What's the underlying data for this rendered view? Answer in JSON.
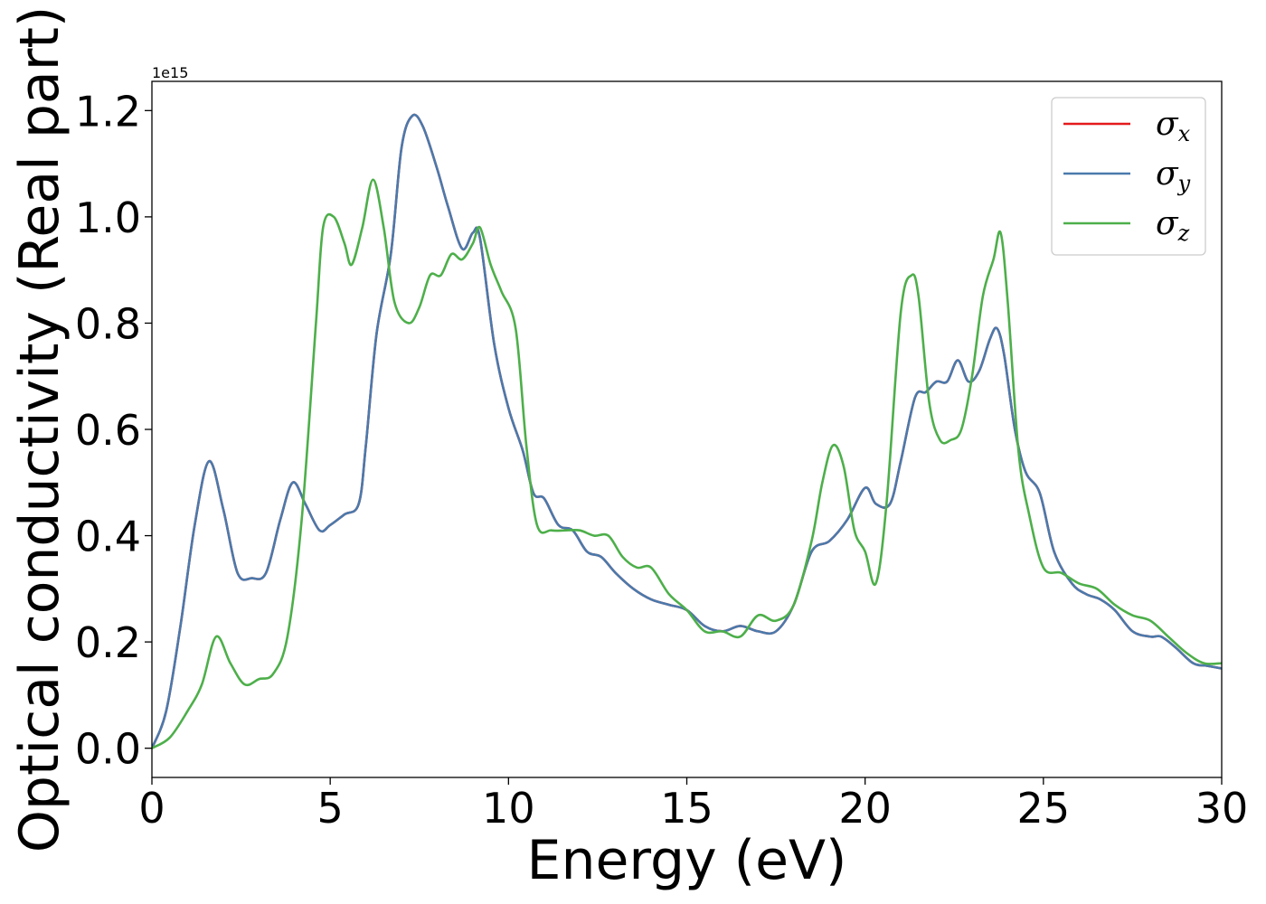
{
  "chart_data": {
    "type": "line",
    "title": "",
    "xlabel": "Energy (eV)",
    "ylabel": "Optical conductivity (Real part)",
    "y_offset_text": "1e15",
    "y_scale": 1000000000000000.0,
    "xlim": [
      0,
      30
    ],
    "ylim": [
      -0.055,
      1.255
    ],
    "x_ticks": [
      0,
      5,
      10,
      15,
      20,
      25,
      30
    ],
    "x_tick_labels": [
      "0",
      "5",
      "10",
      "15",
      "20",
      "25",
      "30"
    ],
    "y_ticks": [
      0.0,
      0.2,
      0.4,
      0.6,
      0.8,
      1.0,
      1.2
    ],
    "y_tick_labels": [
      "0.0",
      "0.2",
      "0.4",
      "0.6",
      "0.8",
      "1.0",
      "1.2"
    ],
    "grid": false,
    "legend_position": "top-right",
    "series": [
      {
        "name": "σx",
        "symbol": "σ",
        "subscript": "x",
        "color": "#e41a1c",
        "x": [
          0,
          0.4,
          0.8,
          1.2,
          1.6,
          2.0,
          2.4,
          2.8,
          3.2,
          3.6,
          3.95,
          4.3,
          4.7,
          5.0,
          5.4,
          5.8,
          6.0,
          6.3,
          6.7,
          7.0,
          7.3,
          7.6,
          8.0,
          8.3,
          8.7,
          9.0,
          9.2,
          9.6,
          10.0,
          10.4,
          10.7,
          11.0,
          11.4,
          11.8,
          12.2,
          12.6,
          13.0,
          13.5,
          14.0,
          14.5,
          15.0,
          15.5,
          16.0,
          16.5,
          17.0,
          17.5,
          18.0,
          18.5,
          19.0,
          19.5,
          20.0,
          20.3,
          20.7,
          21.0,
          21.4,
          21.7,
          22.0,
          22.3,
          22.6,
          22.9,
          23.2,
          23.5,
          23.7,
          23.9,
          24.2,
          24.5,
          24.9,
          25.3,
          25.8,
          26.2,
          26.6,
          27.0,
          27.5,
          28.0,
          28.3,
          28.7,
          29.2,
          29.6,
          30.0
        ],
        "values": [
          0.0,
          0.07,
          0.23,
          0.42,
          0.54,
          0.45,
          0.33,
          0.32,
          0.33,
          0.43,
          0.5,
          0.46,
          0.41,
          0.42,
          0.44,
          0.46,
          0.57,
          0.78,
          0.93,
          1.13,
          1.19,
          1.17,
          1.09,
          1.02,
          0.94,
          0.97,
          0.96,
          0.76,
          0.64,
          0.56,
          0.48,
          0.47,
          0.42,
          0.41,
          0.37,
          0.36,
          0.33,
          0.3,
          0.28,
          0.27,
          0.26,
          0.23,
          0.22,
          0.23,
          0.22,
          0.22,
          0.27,
          0.37,
          0.39,
          0.43,
          0.49,
          0.46,
          0.46,
          0.54,
          0.66,
          0.67,
          0.69,
          0.69,
          0.73,
          0.69,
          0.71,
          0.77,
          0.79,
          0.74,
          0.6,
          0.52,
          0.48,
          0.37,
          0.31,
          0.29,
          0.28,
          0.26,
          0.22,
          0.21,
          0.21,
          0.19,
          0.16,
          0.155,
          0.15
        ]
      },
      {
        "name": "σy",
        "symbol": "σ",
        "subscript": "y",
        "color": "#4a7aac",
        "x": [
          0,
          0.4,
          0.8,
          1.2,
          1.6,
          2.0,
          2.4,
          2.8,
          3.2,
          3.6,
          3.95,
          4.3,
          4.7,
          5.0,
          5.4,
          5.8,
          6.0,
          6.3,
          6.7,
          7.0,
          7.3,
          7.6,
          8.0,
          8.3,
          8.7,
          9.0,
          9.2,
          9.6,
          10.0,
          10.4,
          10.7,
          11.0,
          11.4,
          11.8,
          12.2,
          12.6,
          13.0,
          13.5,
          14.0,
          14.5,
          15.0,
          15.5,
          16.0,
          16.5,
          17.0,
          17.5,
          18.0,
          18.5,
          19.0,
          19.5,
          20.0,
          20.3,
          20.7,
          21.0,
          21.4,
          21.7,
          22.0,
          22.3,
          22.6,
          22.9,
          23.2,
          23.5,
          23.7,
          23.9,
          24.2,
          24.5,
          24.9,
          25.3,
          25.8,
          26.2,
          26.6,
          27.0,
          27.5,
          28.0,
          28.3,
          28.7,
          29.2,
          29.6,
          30.0
        ],
        "values": [
          0.0,
          0.07,
          0.23,
          0.42,
          0.54,
          0.45,
          0.33,
          0.32,
          0.33,
          0.43,
          0.5,
          0.46,
          0.41,
          0.42,
          0.44,
          0.46,
          0.57,
          0.78,
          0.93,
          1.13,
          1.19,
          1.17,
          1.09,
          1.02,
          0.94,
          0.97,
          0.96,
          0.76,
          0.64,
          0.56,
          0.48,
          0.47,
          0.42,
          0.41,
          0.37,
          0.36,
          0.33,
          0.3,
          0.28,
          0.27,
          0.26,
          0.23,
          0.22,
          0.23,
          0.22,
          0.22,
          0.27,
          0.37,
          0.39,
          0.43,
          0.49,
          0.46,
          0.46,
          0.54,
          0.66,
          0.67,
          0.69,
          0.69,
          0.73,
          0.69,
          0.71,
          0.77,
          0.79,
          0.74,
          0.6,
          0.52,
          0.48,
          0.37,
          0.31,
          0.29,
          0.28,
          0.26,
          0.22,
          0.21,
          0.21,
          0.19,
          0.16,
          0.155,
          0.15
        ]
      },
      {
        "name": "σz",
        "symbol": "σ",
        "subscript": "z",
        "color": "#4daf4a",
        "x": [
          0,
          0.5,
          1.0,
          1.4,
          1.8,
          2.2,
          2.6,
          3.0,
          3.4,
          3.8,
          4.2,
          4.6,
          4.8,
          5.1,
          5.4,
          5.6,
          5.9,
          6.2,
          6.5,
          6.8,
          7.2,
          7.5,
          7.8,
          8.1,
          8.4,
          8.7,
          9.0,
          9.2,
          9.5,
          9.8,
          10.2,
          10.5,
          10.8,
          11.2,
          11.6,
          12.0,
          12.4,
          12.8,
          13.2,
          13.6,
          14.0,
          14.5,
          15.0,
          15.5,
          16.0,
          16.5,
          17.0,
          17.5,
          18.0,
          18.5,
          18.8,
          19.1,
          19.4,
          19.7,
          20.0,
          20.3,
          20.6,
          21.0,
          21.3,
          21.5,
          21.8,
          22.1,
          22.4,
          22.7,
          23.0,
          23.3,
          23.6,
          23.8,
          24.0,
          24.3,
          24.6,
          25.0,
          25.5,
          26.0,
          26.5,
          27.0,
          27.5,
          28.0,
          28.5,
          29.0,
          29.5,
          30.0
        ],
        "values": [
          0.0,
          0.02,
          0.07,
          0.12,
          0.21,
          0.16,
          0.12,
          0.13,
          0.14,
          0.21,
          0.43,
          0.8,
          0.98,
          1.0,
          0.95,
          0.91,
          0.98,
          1.07,
          0.98,
          0.84,
          0.8,
          0.83,
          0.89,
          0.89,
          0.93,
          0.92,
          0.95,
          0.98,
          0.91,
          0.86,
          0.79,
          0.57,
          0.42,
          0.41,
          0.41,
          0.41,
          0.4,
          0.4,
          0.36,
          0.34,
          0.34,
          0.29,
          0.26,
          0.22,
          0.22,
          0.21,
          0.25,
          0.24,
          0.27,
          0.39,
          0.5,
          0.57,
          0.53,
          0.41,
          0.37,
          0.31,
          0.46,
          0.82,
          0.89,
          0.85,
          0.65,
          0.58,
          0.58,
          0.6,
          0.7,
          0.85,
          0.92,
          0.97,
          0.84,
          0.56,
          0.44,
          0.34,
          0.33,
          0.31,
          0.3,
          0.27,
          0.25,
          0.24,
          0.21,
          0.18,
          0.16,
          0.16
        ]
      }
    ]
  }
}
